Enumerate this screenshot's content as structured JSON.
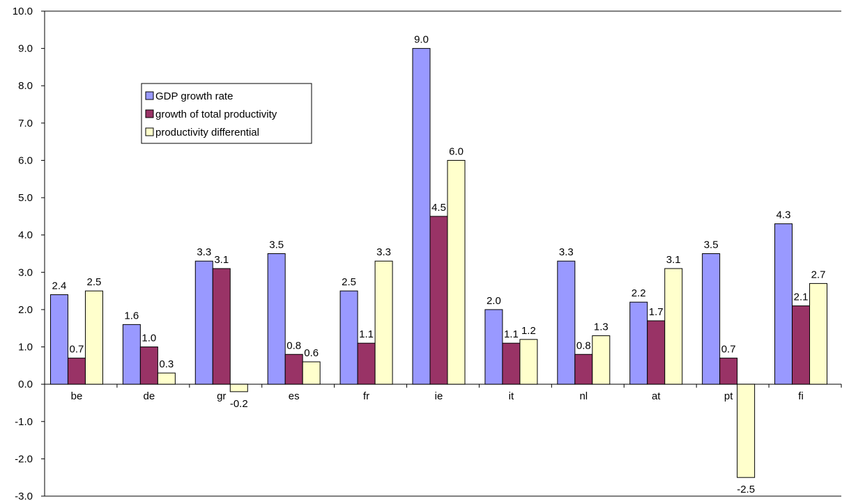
{
  "chart_data": {
    "type": "bar",
    "categories": [
      "be",
      "de",
      "gr",
      "es",
      "fr",
      "ie",
      "it",
      "nl",
      "at",
      "pt",
      "fi"
    ],
    "series": [
      {
        "name": "GDP growth rate",
        "color": "#9999FF",
        "values": [
          2.4,
          1.6,
          3.3,
          3.5,
          2.5,
          9.0,
          2.0,
          3.3,
          2.2,
          3.5,
          4.3
        ]
      },
      {
        "name": "growth of total productivity",
        "color": "#993366",
        "values": [
          0.7,
          1.0,
          3.1,
          0.8,
          1.1,
          4.5,
          1.1,
          0.8,
          1.7,
          0.7,
          2.1
        ]
      },
      {
        "name": "productivity differential",
        "color": "#FFFFCC",
        "values": [
          2.5,
          0.3,
          -0.2,
          0.6,
          3.3,
          6.0,
          1.2,
          1.3,
          3.1,
          -2.5,
          2.7
        ]
      }
    ],
    "ylim": [
      -3.0,
      10.0
    ],
    "ytick_step": 1.0,
    "ytick_decimals": 1,
    "grid": false,
    "legend_position": "upper-left-inside",
    "title": "",
    "xlabel": "",
    "ylabel": ""
  }
}
